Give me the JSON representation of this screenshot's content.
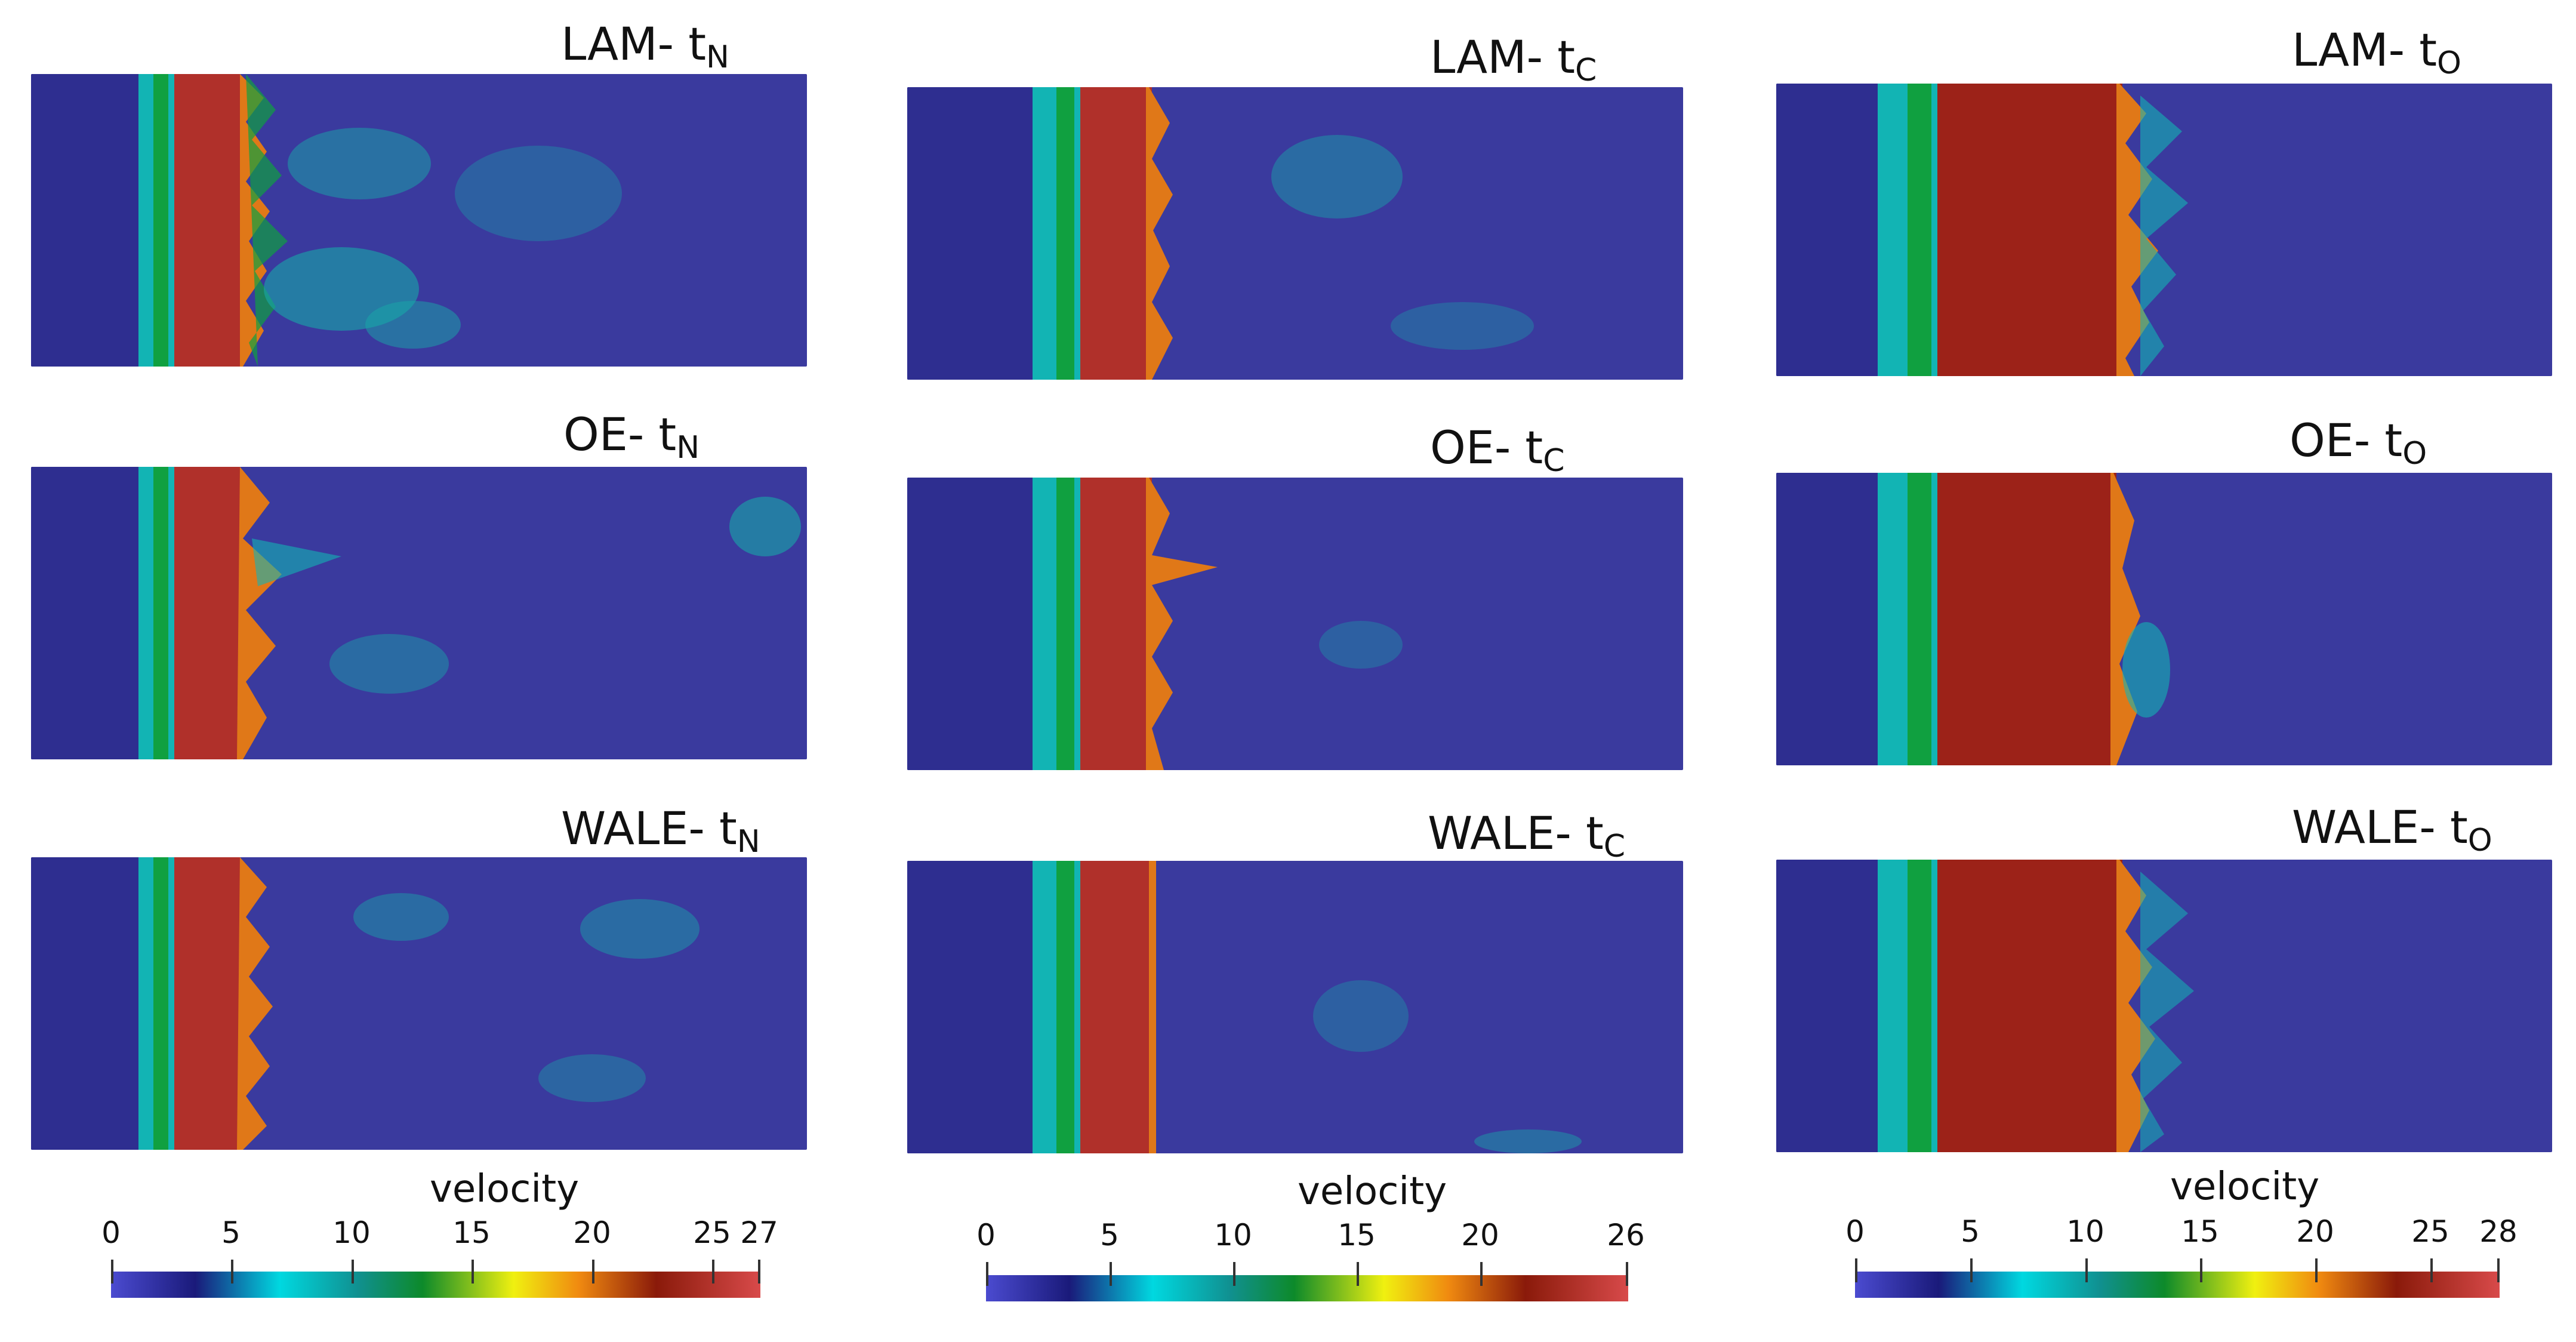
{
  "panels": [
    {
      "label": "LAM- ",
      "sub": "N"
    },
    {
      "label": "LAM- ",
      "sub": "C"
    },
    {
      "label": "LAM- ",
      "sub": "O"
    },
    {
      "label": "OE- ",
      "sub": "N"
    },
    {
      "label": "OE- ",
      "sub": "C"
    },
    {
      "label": "OE- ",
      "sub": "O"
    },
    {
      "label": "WALE- ",
      "sub": "N"
    },
    {
      "label": "WALE- ",
      "sub": "C"
    },
    {
      "label": "WALE- ",
      "sub": "O"
    }
  ],
  "label_t": "t",
  "colorbars": [
    {
      "title": "velocity",
      "ticks": [
        "0",
        "5",
        "10",
        "15",
        "20",
        "25",
        "27"
      ],
      "max": 27
    },
    {
      "title": "velocity",
      "ticks": [
        "0",
        "5",
        "10",
        "15",
        "20",
        "26"
      ],
      "max": 26
    },
    {
      "title": "velocity",
      "ticks": [
        "0",
        "5",
        "10",
        "15",
        "20",
        "25",
        "28"
      ],
      "max": 28
    }
  ],
  "colors": {
    "background_blue": "#3a3a9e",
    "dark_blue": "#2c2c88",
    "cyan": "#12b4b4",
    "green": "#10a040",
    "yellow": "#e8e020",
    "orange": "#e07818",
    "dark_red": "#a82a20"
  }
}
